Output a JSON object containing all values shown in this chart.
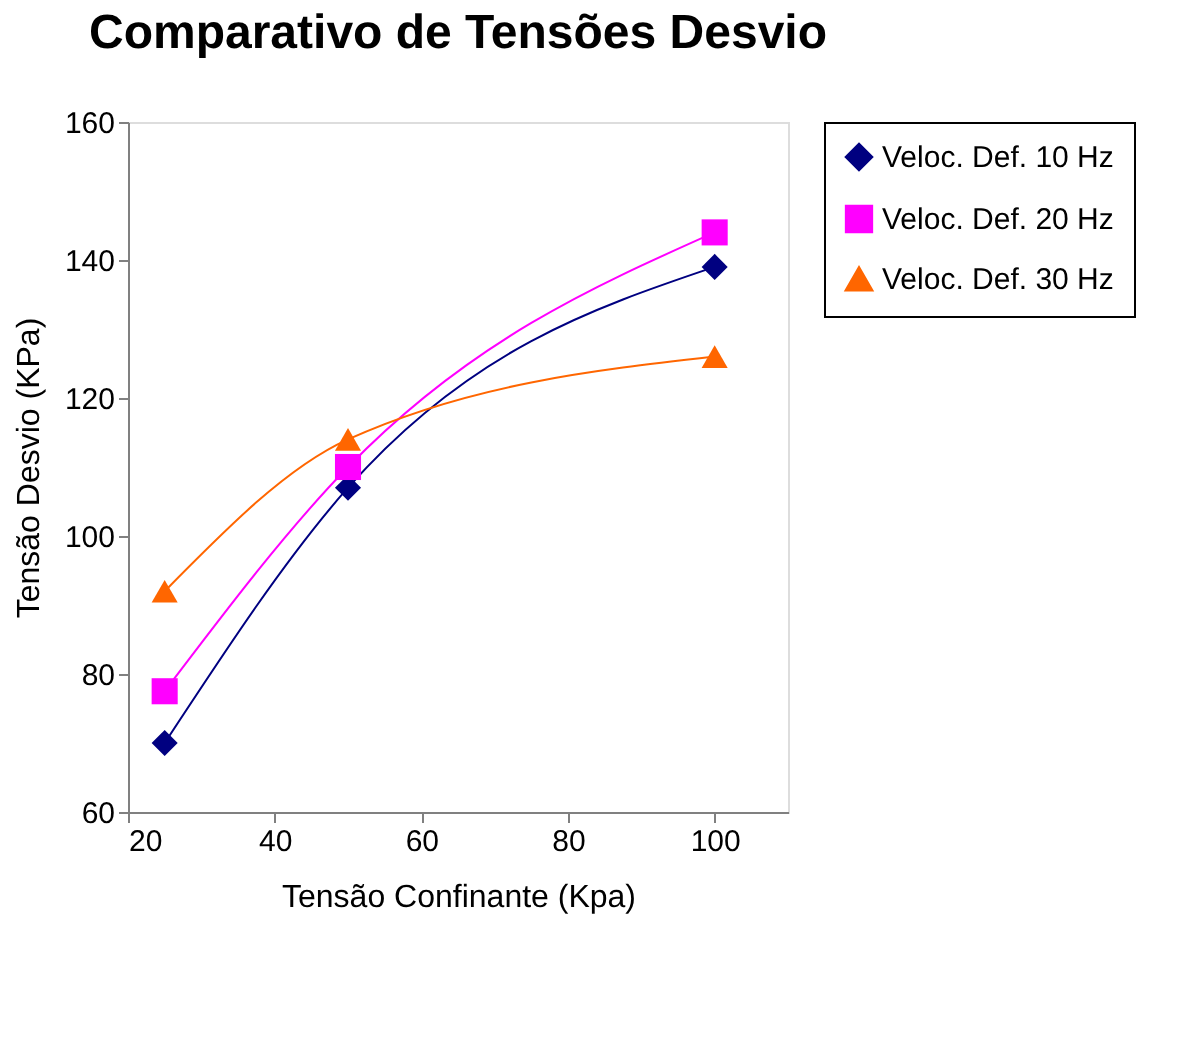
{
  "chart_data": {
    "type": "line",
    "title": "Comparativo de Tensões Desvio",
    "xlabel": "Tensão Confinante (Kpa)",
    "ylabel": "Tensão Desvio (KPa)",
    "x": [
      25,
      50,
      100
    ],
    "series": [
      {
        "name": "Veloc. Def. 10 Hz",
        "color": "#000080",
        "marker": "diamond",
        "values": [
          70,
          107,
          139
        ]
      },
      {
        "name": "Veloc. Def. 20 Hz",
        "color": "#ff00ff",
        "marker": "square",
        "values": [
          77.5,
          110,
          144
        ]
      },
      {
        "name": "Veloc. Def. 30 Hz",
        "color": "#ff6600",
        "marker": "triangle",
        "values": [
          92,
          114,
          126
        ]
      }
    ],
    "xlim": [
      20,
      110
    ],
    "xticks": [
      20,
      40,
      60,
      80,
      100
    ],
    "ylim": [
      60,
      160
    ],
    "yticks": [
      60,
      80,
      100,
      120,
      140,
      160
    ],
    "grid": false,
    "legend": "right",
    "line_style": "solid"
  }
}
